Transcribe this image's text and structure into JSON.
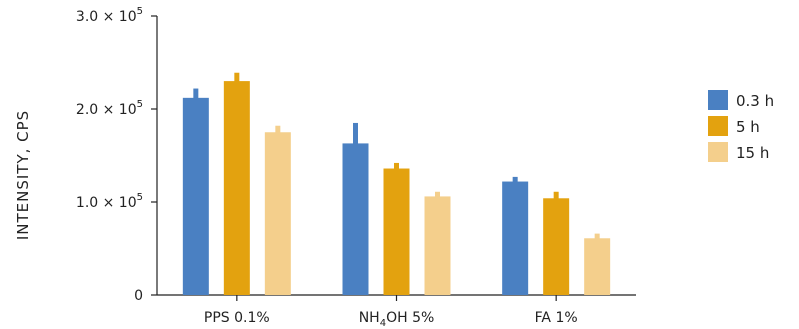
{
  "chart_data": {
    "type": "bar",
    "title": "",
    "xlabel": "",
    "ylabel": "INTENSITY, CPS",
    "ylim": [
      0,
      300000
    ],
    "yticks": [
      {
        "value": 0,
        "label": "0"
      },
      {
        "value": 100000,
        "label": "1.0 × 10"
      },
      {
        "value": 200000,
        "label": "2.0 × 10"
      },
      {
        "value": 300000,
        "label": "3.0 × 10"
      }
    ],
    "ytick_exponent": "5",
    "categories": [
      "PPS 0.1%",
      "NH4OH 5%",
      "FA 1%"
    ],
    "category_labels": [
      {
        "main": "PPS 0.1%",
        "sub": "",
        "rest": ""
      },
      {
        "main": "NH",
        "sub": "4",
        "rest": "OH 5%"
      },
      {
        "main": "FA 1%",
        "sub": "",
        "rest": ""
      }
    ],
    "series": [
      {
        "name": "0.3 h",
        "color": "#4a80c2",
        "values": [
          212000,
          163000,
          122000
        ],
        "errors": [
          10000,
          22000,
          5000
        ]
      },
      {
        "name": "5 h",
        "color": "#e3a20f",
        "values": [
          230000,
          136000,
          104000
        ],
        "errors": [
          9000,
          6000,
          7000
        ]
      },
      {
        "name": "15 h",
        "color": "#f4cf8c",
        "values": [
          175000,
          106000,
          61000
        ],
        "errors": [
          7000,
          5000,
          5000
        ]
      }
    ],
    "error_bars": "upper",
    "grid": false,
    "legend_position": "right"
  }
}
